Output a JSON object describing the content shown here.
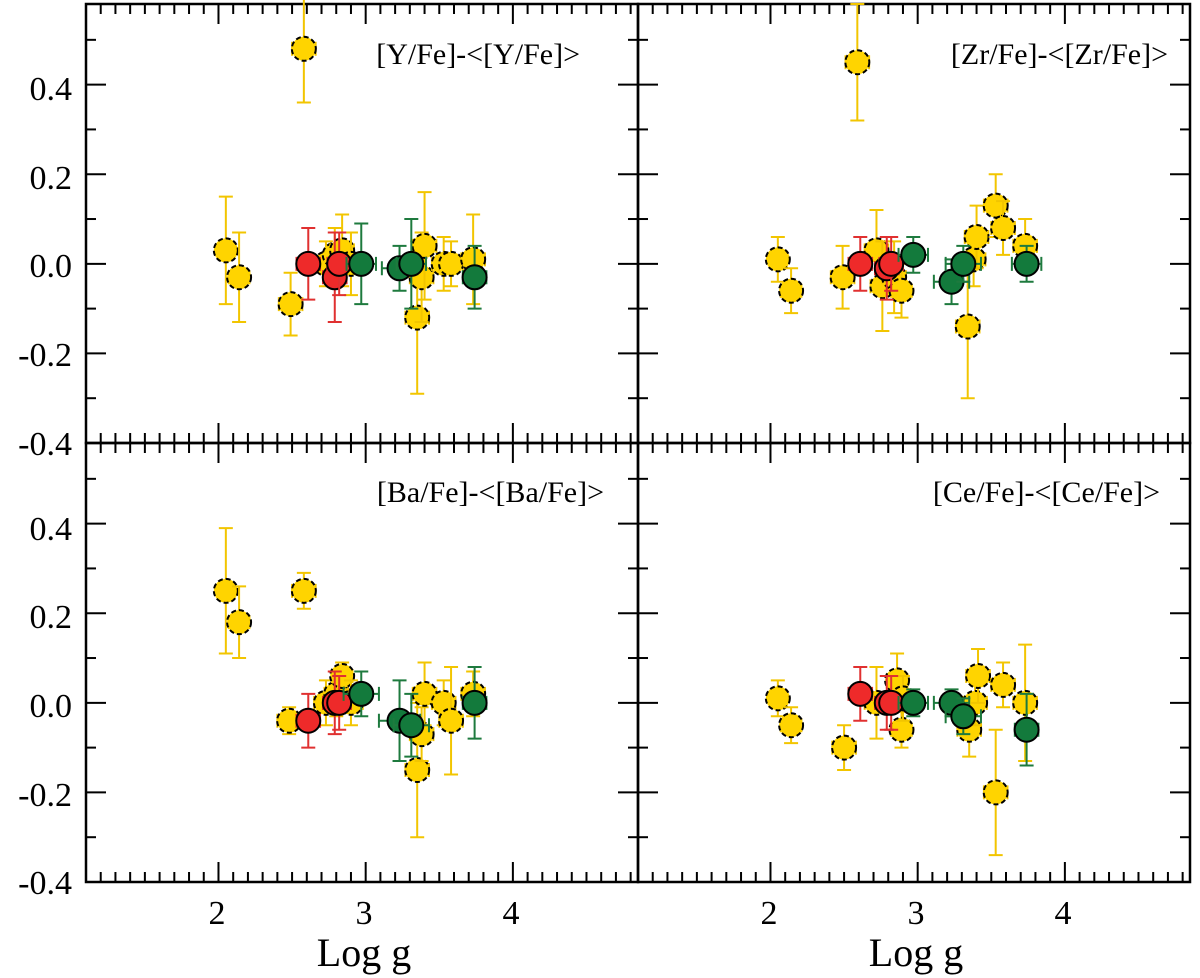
{
  "colors": {
    "yellow": "#FFD400",
    "yellow_err": "#F2C500",
    "red": "#EE2A2A",
    "red_err": "#E03030",
    "green": "#137A3C",
    "green_err": "#1E7A3E"
  },
  "chart_data": [
    {
      "type": "scatter",
      "title": "[Y/Fe]-<[Y/Fe]>",
      "xlabel": "Log g",
      "ylabel": "",
      "xlim": [
        1.1,
        4.85
      ],
      "ylim": [
        -0.4,
        0.58
      ],
      "xticks": [
        "2",
        "3",
        "4"
      ],
      "yticks": [
        "0.4",
        "0.2",
        "0.0",
        "-0.2",
        "-0.4"
      ],
      "series": [
        {
          "name": "yellow",
          "points": [
            {
              "x": 2.05,
              "y": 0.03,
              "ex": 0.06,
              "ey": 0.12
            },
            {
              "x": 2.14,
              "y": -0.03,
              "ex": 0.07,
              "ey": 0.1
            },
            {
              "x": 2.49,
              "y": -0.09,
              "ex": 0.08,
              "ey": 0.07
            },
            {
              "x": 2.58,
              "y": 0.48,
              "ex": 0.08,
              "ey": 0.12
            },
            {
              "x": 2.73,
              "y": 0.0,
              "ex": 0.08,
              "ey": 0.05
            },
            {
              "x": 2.79,
              "y": 0.02,
              "ex": 0.07,
              "ey": 0.06
            },
            {
              "x": 2.84,
              "y": 0.03,
              "ex": 0.08,
              "ey": 0.08
            },
            {
              "x": 2.9,
              "y": 0.0,
              "ex": 0.08,
              "ey": 0.07
            },
            {
              "x": 3.35,
              "y": -0.12,
              "ex": 0.08,
              "ey": 0.17
            },
            {
              "x": 3.38,
              "y": -0.03,
              "ex": 0.08,
              "ey": 0.1
            },
            {
              "x": 3.4,
              "y": 0.04,
              "ex": 0.08,
              "ey": 0.12
            },
            {
              "x": 3.53,
              "y": 0.0,
              "ex": 0.08,
              "ey": 0.06
            },
            {
              "x": 3.58,
              "y": 0.0,
              "ex": 0.08,
              "ey": 0.05
            },
            {
              "x": 3.73,
              "y": 0.01,
              "ex": 0.08,
              "ey": 0.1
            }
          ]
        },
        {
          "name": "red",
          "points": [
            {
              "x": 2.61,
              "y": 0.0,
              "ex": 0.08,
              "ey": 0.08
            },
            {
              "x": 2.79,
              "y": -0.03,
              "ex": 0.08,
              "ey": 0.1
            },
            {
              "x": 2.82,
              "y": 0.0,
              "ex": 0.08,
              "ey": 0.07
            }
          ]
        },
        {
          "name": "green",
          "points": [
            {
              "x": 2.97,
              "y": 0.0,
              "ex": 0.1,
              "ey": 0.09
            },
            {
              "x": 3.23,
              "y": -0.01,
              "ex": 0.12,
              "ey": 0.05
            },
            {
              "x": 3.31,
              "y": 0.0,
              "ex": 0.1,
              "ey": 0.1
            },
            {
              "x": 3.74,
              "y": -0.03,
              "ex": 0.08,
              "ey": 0.07
            }
          ]
        }
      ]
    },
    {
      "type": "scatter",
      "title": "[Zr/Fe]-<[Zr/Fe]>",
      "xlabel": "Log g",
      "ylabel": "",
      "xlim": [
        1.1,
        4.85
      ],
      "ylim": [
        -0.4,
        0.58
      ],
      "xticks": [
        "2",
        "3",
        "4"
      ],
      "yticks": [
        "0.4",
        "0.2",
        "0.0",
        "-0.2",
        "-0.4"
      ],
      "series": [
        {
          "name": "yellow",
          "points": [
            {
              "x": 2.05,
              "y": 0.01,
              "ex": 0.06,
              "ey": 0.05
            },
            {
              "x": 2.14,
              "y": -0.06,
              "ex": 0.07,
              "ey": 0.05
            },
            {
              "x": 2.49,
              "y": -0.03,
              "ex": 0.08,
              "ey": 0.07
            },
            {
              "x": 2.59,
              "y": 0.45,
              "ex": 0.08,
              "ey": 0.13
            },
            {
              "x": 2.72,
              "y": 0.03,
              "ex": 0.08,
              "ey": 0.09
            },
            {
              "x": 2.76,
              "y": -0.05,
              "ex": 0.08,
              "ey": 0.1
            },
            {
              "x": 2.84,
              "y": -0.03,
              "ex": 0.08,
              "ey": 0.08
            },
            {
              "x": 2.89,
              "y": -0.06,
              "ex": 0.07,
              "ey": 0.06
            },
            {
              "x": 3.34,
              "y": -0.14,
              "ex": 0.08,
              "ey": 0.16
            },
            {
              "x": 3.38,
              "y": 0.01,
              "ex": 0.08,
              "ey": 0.06
            },
            {
              "x": 3.4,
              "y": 0.06,
              "ex": 0.08,
              "ey": 0.07
            },
            {
              "x": 3.53,
              "y": 0.13,
              "ex": 0.08,
              "ey": 0.07
            },
            {
              "x": 3.58,
              "y": 0.08,
              "ex": 0.08,
              "ey": 0.06
            },
            {
              "x": 3.73,
              "y": 0.04,
              "ex": 0.08,
              "ey": 0.06
            }
          ]
        },
        {
          "name": "red",
          "points": [
            {
              "x": 2.61,
              "y": 0.0,
              "ex": 0.08,
              "ey": 0.06
            },
            {
              "x": 2.79,
              "y": -0.01,
              "ex": 0.08,
              "ey": 0.07
            },
            {
              "x": 2.82,
              "y": 0.0,
              "ex": 0.08,
              "ey": 0.06
            }
          ]
        },
        {
          "name": "green",
          "points": [
            {
              "x": 2.97,
              "y": 0.02,
              "ex": 0.1,
              "ey": 0.04
            },
            {
              "x": 3.23,
              "y": -0.04,
              "ex": 0.12,
              "ey": 0.05
            },
            {
              "x": 3.31,
              "y": 0.0,
              "ex": 0.12,
              "ey": 0.04
            },
            {
              "x": 3.74,
              "y": 0.0,
              "ex": 0.1,
              "ey": 0.04
            }
          ]
        }
      ]
    },
    {
      "type": "scatter",
      "title": "[Ba/Fe]-<[Ba/Fe]>",
      "xlabel": "Log g",
      "ylabel": "",
      "xlim": [
        1.1,
        4.85
      ],
      "ylim": [
        -0.4,
        0.58
      ],
      "xticks": [
        "2",
        "3",
        "4"
      ],
      "yticks": [
        "0.4",
        "0.2",
        "0.0",
        "-0.2",
        "-0.4"
      ],
      "series": [
        {
          "name": "yellow",
          "points": [
            {
              "x": 2.05,
              "y": 0.25,
              "ex": 0.06,
              "ey": 0.14
            },
            {
              "x": 2.14,
              "y": 0.18,
              "ex": 0.07,
              "ey": 0.08
            },
            {
              "x": 2.48,
              "y": -0.04,
              "ex": 0.08,
              "ey": 0.03
            },
            {
              "x": 2.58,
              "y": 0.25,
              "ex": 0.08,
              "ey": 0.04
            },
            {
              "x": 2.73,
              "y": 0.0,
              "ex": 0.08,
              "ey": 0.05
            },
            {
              "x": 2.8,
              "y": 0.02,
              "ex": 0.08,
              "ey": 0.05
            },
            {
              "x": 2.84,
              "y": 0.06,
              "ex": 0.07,
              "ey": 0.03
            },
            {
              "x": 2.9,
              "y": 0.0,
              "ex": 0.08,
              "ey": 0.05
            },
            {
              "x": 3.35,
              "y": -0.15,
              "ex": 0.08,
              "ey": 0.15
            },
            {
              "x": 3.38,
              "y": -0.07,
              "ex": 0.08,
              "ey": 0.06
            },
            {
              "x": 3.4,
              "y": 0.02,
              "ex": 0.08,
              "ey": 0.07
            },
            {
              "x": 3.53,
              "y": 0.0,
              "ex": 0.08,
              "ey": 0.05
            },
            {
              "x": 3.58,
              "y": -0.04,
              "ex": 0.08,
              "ey": 0.12
            },
            {
              "x": 3.73,
              "y": 0.02,
              "ex": 0.08,
              "ey": 0.05
            }
          ]
        },
        {
          "name": "red",
          "points": [
            {
              "x": 2.61,
              "y": -0.04,
              "ex": 0.08,
              "ey": 0.06
            },
            {
              "x": 2.79,
              "y": 0.0,
              "ex": 0.08,
              "ey": 0.07
            },
            {
              "x": 2.82,
              "y": 0.0,
              "ex": 0.08,
              "ey": 0.06
            }
          ]
        },
        {
          "name": "green",
          "points": [
            {
              "x": 2.97,
              "y": 0.02,
              "ex": 0.12,
              "ey": 0.05
            },
            {
              "x": 3.23,
              "y": -0.04,
              "ex": 0.14,
              "ey": 0.09
            },
            {
              "x": 3.31,
              "y": -0.05,
              "ex": 0.12,
              "ey": 0.07
            },
            {
              "x": 3.74,
              "y": 0.0,
              "ex": 0.08,
              "ey": 0.08
            }
          ]
        }
      ]
    },
    {
      "type": "scatter",
      "title": "[Ce/Fe]-<[Ce/Fe]>",
      "xlabel": "Log g",
      "ylabel": "",
      "xlim": [
        1.1,
        4.85
      ],
      "ylim": [
        -0.4,
        0.58
      ],
      "xticks": [
        "2",
        "3",
        "4"
      ],
      "yticks": [
        "0.4",
        "0.2",
        "0.0",
        "-0.2",
        "-0.4"
      ],
      "series": [
        {
          "name": "yellow",
          "points": [
            {
              "x": 2.05,
              "y": 0.01,
              "ex": 0.06,
              "ey": 0.04
            },
            {
              "x": 2.14,
              "y": -0.05,
              "ex": 0.07,
              "ey": 0.04
            },
            {
              "x": 2.5,
              "y": -0.1,
              "ex": 0.08,
              "ey": 0.05
            },
            {
              "x": 2.72,
              "y": 0.0,
              "ex": 0.08,
              "ey": 0.08
            },
            {
              "x": 2.86,
              "y": 0.05,
              "ex": 0.07,
              "ey": 0.06
            },
            {
              "x": 2.89,
              "y": -0.06,
              "ex": 0.07,
              "ey": 0.04
            },
            {
              "x": 2.9,
              "y": 0.01,
              "ex": 0.08,
              "ey": 0.05
            },
            {
              "x": 3.35,
              "y": -0.06,
              "ex": 0.08,
              "ey": 0.06
            },
            {
              "x": 3.39,
              "y": 0.0,
              "ex": 0.08,
              "ey": 0.05
            },
            {
              "x": 3.41,
              "y": 0.06,
              "ex": 0.08,
              "ey": 0.06
            },
            {
              "x": 3.53,
              "y": -0.2,
              "ex": 0.08,
              "ey": 0.14
            },
            {
              "x": 3.58,
              "y": 0.04,
              "ex": 0.08,
              "ey": 0.05
            },
            {
              "x": 3.73,
              "y": 0.0,
              "ex": 0.08,
              "ey": 0.13
            }
          ]
        },
        {
          "name": "red",
          "points": [
            {
              "x": 2.61,
              "y": 0.02,
              "ex": 0.08,
              "ey": 0.06
            },
            {
              "x": 2.79,
              "y": 0.0,
              "ex": 0.08,
              "ey": 0.06
            },
            {
              "x": 2.82,
              "y": 0.0,
              "ex": 0.08,
              "ey": 0.06
            }
          ]
        },
        {
          "name": "green",
          "points": [
            {
              "x": 2.97,
              "y": 0.0,
              "ex": 0.1,
              "ey": 0.03
            },
            {
              "x": 3.23,
              "y": 0.0,
              "ex": 0.12,
              "ey": 0.03
            },
            {
              "x": 3.31,
              "y": -0.03,
              "ex": 0.12,
              "ey": 0.04
            },
            {
              "x": 3.74,
              "y": -0.06,
              "ex": 0.08,
              "ey": 0.08
            }
          ]
        }
      ]
    }
  ]
}
